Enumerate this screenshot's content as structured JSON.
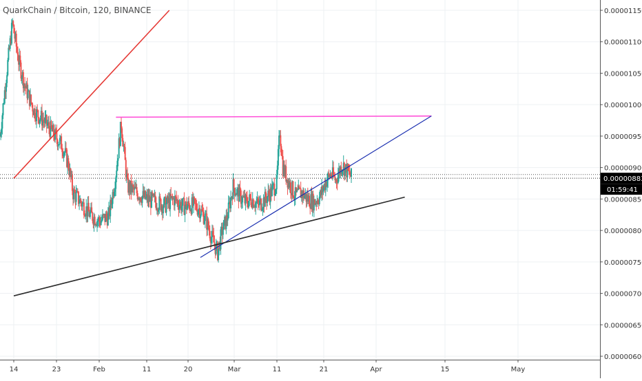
{
  "chart_data": {
    "type": "candlestick",
    "title": "QuarkChain / Bitcoin, 120, BINANCE",
    "x_ticks": [
      "14",
      "23",
      "Feb",
      "11",
      "20",
      "Mar",
      "11",
      "21",
      "Apr",
      "15",
      "May"
    ],
    "y_ticks": [
      "0.00001150",
      "0.00001100",
      "0.00001050",
      "0.00001000",
      "0.00000950",
      "0.00000900",
      "0.00000850",
      "0.00000800",
      "0.00000750",
      "0.00000700",
      "0.00000650",
      "0.00000600"
    ],
    "ylim": [
      5.94e-06,
      1.165e-05
    ],
    "grid": true,
    "price_marks": {
      "last_price": "0.00000883",
      "countdown": "01:59:41",
      "reference_price": 8.89e-06
    },
    "trendlines": [
      {
        "color": "#e53935",
        "from": [
          "Jan 14",
          8.83e-06
        ],
        "to": [
          "Feb 18",
          1.15e-05
        ]
      },
      {
        "color": "#ff4fd8",
        "from": [
          "Feb 6",
          9.8e-06
        ],
        "to": [
          "Apr 18",
          9.82e-06
        ]
      },
      {
        "color": "#1a2fb0",
        "from": [
          "Feb 25",
          7.57e-06
        ],
        "to": [
          "Apr 18",
          9.82e-06
        ]
      },
      {
        "color": "#2b2b2b",
        "from": [
          "Jan 14",
          6.96e-06
        ],
        "to": [
          "Apr 12",
          8.53e-06
        ]
      }
    ],
    "price_path": [
      [
        0,
        9.5e-06
      ],
      [
        4,
        1.045e-05
      ],
      [
        8,
        1.13e-05
      ],
      [
        12,
        1.07e-05
      ],
      [
        16,
        1.03e-05
      ],
      [
        22,
        9.9e-06
      ],
      [
        28,
        9.75e-06
      ],
      [
        34,
        9.55e-06
      ],
      [
        40,
        9.35e-06
      ],
      [
        44,
        9.05e-06
      ],
      [
        47,
        8.6e-06
      ],
      [
        52,
        8.45e-06
      ],
      [
        58,
        8.25e-06
      ],
      [
        64,
        8.15e-06
      ],
      [
        70,
        8.23e-06
      ],
      [
        74,
        8.8e-06
      ],
      [
        78,
        9.7e-06
      ],
      [
        82,
        8.7e-06
      ],
      [
        88,
        8.6e-06
      ],
      [
        94,
        8.5e-06
      ],
      [
        100,
        8.45e-06
      ],
      [
        106,
        8.4e-06
      ],
      [
        112,
        8.5e-06
      ],
      [
        118,
        8.38e-06
      ],
      [
        124,
        8.4e-06
      ],
      [
        128,
        8.35e-06
      ],
      [
        132,
        8.2e-06
      ],
      [
        136,
        7.9e-06
      ],
      [
        140,
        7.65e-06
      ],
      [
        143,
        8e-06
      ],
      [
        146,
        8.2e-06
      ],
      [
        150,
        8.7e-06
      ],
      [
        154,
        8.55e-06
      ],
      [
        158,
        8.45e-06
      ],
      [
        162,
        8.5e-06
      ],
      [
        166,
        8.4e-06
      ],
      [
        170,
        8.48e-06
      ],
      [
        174,
        8.6e-06
      ],
      [
        178,
        8.75e-06
      ],
      [
        180,
        9.6e-06
      ],
      [
        182,
        9e-06
      ],
      [
        186,
        8.75e-06
      ],
      [
        190,
        8.55e-06
      ],
      [
        194,
        8.6e-06
      ],
      [
        198,
        8.5e-06
      ],
      [
        202,
        8.45e-06
      ],
      [
        206,
        8.55e-06
      ],
      [
        210,
        8.8e-06
      ],
      [
        213,
        8.9e-06
      ],
      [
        216,
        8.8e-06
      ],
      [
        220,
        9.05e-06
      ],
      [
        223,
        8.95e-06
      ],
      [
        226,
        8.85e-06
      ]
    ]
  }
}
